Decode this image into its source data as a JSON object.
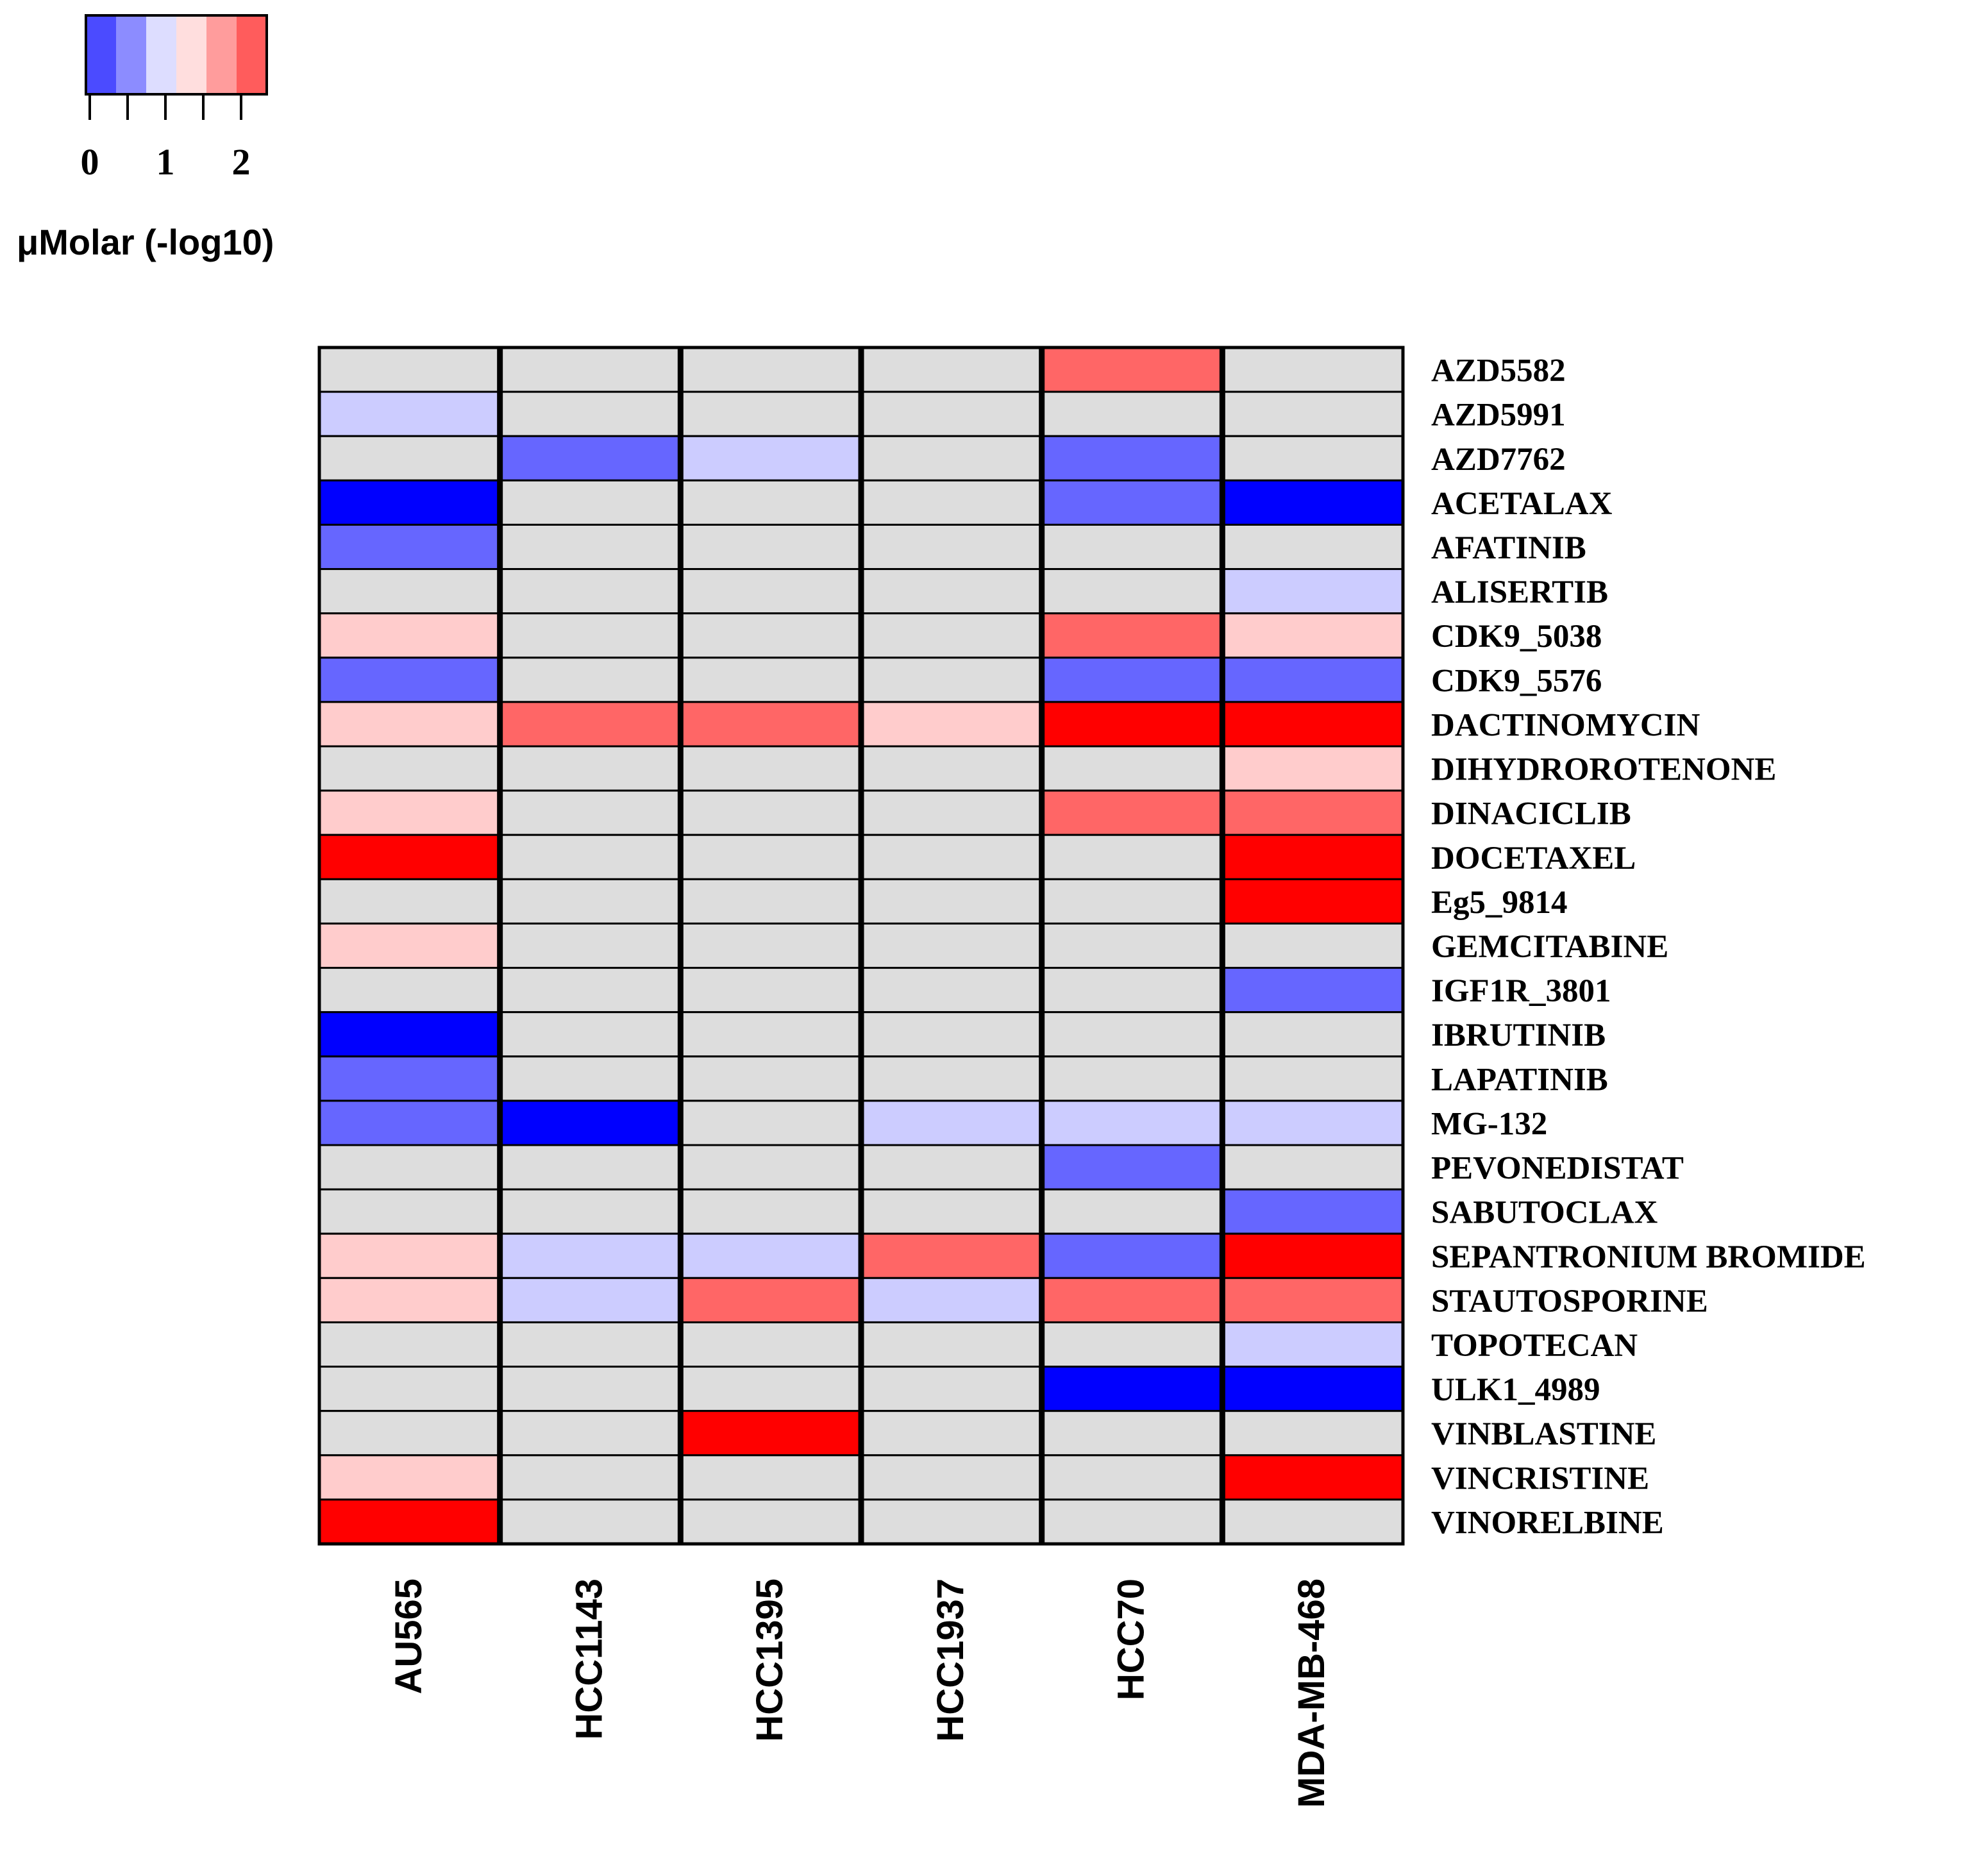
{
  "chart_data": {
    "type": "heatmap",
    "title": "",
    "legend": {
      "title": "μMolar (-log10)",
      "tick_labels": [
        "0",
        "1",
        "2"
      ],
      "bins": [
        {
          "level": -3,
          "color": "#0000ff"
        },
        {
          "level": -2,
          "color": "#6666ff"
        },
        {
          "level": -1,
          "color": "#ccccff"
        },
        {
          "level": 0,
          "color": "#dddddd"
        },
        {
          "level": 1,
          "color": "#ffcccc"
        },
        {
          "level": 2,
          "color": "#ff6666"
        },
        {
          "level": 3,
          "color": "#ff0000"
        }
      ],
      "legend_colors": [
        "#4b4bff",
        "#8c8cff",
        "#ddddff",
        "#ffdede",
        "#ff9c9c",
        "#ff5c5c"
      ]
    },
    "columns": [
      "AU565",
      "HCC1143",
      "HCC1395",
      "HCC1937",
      "HCC70",
      "MDA-MB-468"
    ],
    "rows": [
      "AZD5582",
      "AZD5991",
      "AZD7762",
      "ACETALAX",
      "AFATINIB",
      "ALISERTIB",
      "CDK9_5038",
      "CDK9_5576",
      "DACTINOMYCIN",
      "DIHYDROROTENONE",
      "DINACICLIB",
      "DOCETAXEL",
      "Eg5_9814",
      "GEMCITABINE",
      "IGF1R_3801",
      "IBRUTINIB",
      "LAPATINIB",
      "MG-132",
      "PEVONEDISTAT",
      "SABUTOCLAX",
      "SEPANTRONIUM BROMIDE",
      "STAUTOSPORINE",
      "TOPOTECAN",
      "ULK1_4989",
      "VINBLASTINE",
      "VINCRISTINE",
      "VINORELBINE"
    ],
    "values": [
      [
        0,
        0,
        0,
        0,
        2,
        0
      ],
      [
        -1,
        0,
        0,
        0,
        0,
        0
      ],
      [
        0,
        -2,
        -1,
        0,
        -2,
        0
      ],
      [
        -3,
        0,
        0,
        0,
        -2,
        -3
      ],
      [
        -2,
        0,
        0,
        0,
        0,
        0
      ],
      [
        0,
        0,
        0,
        0,
        0,
        -1
      ],
      [
        1,
        0,
        0,
        0,
        2,
        1
      ],
      [
        -2,
        0,
        0,
        0,
        -2,
        -2
      ],
      [
        1,
        2,
        2,
        1,
        3,
        3
      ],
      [
        0,
        0,
        0,
        0,
        0,
        1
      ],
      [
        1,
        0,
        0,
        0,
        2,
        2
      ],
      [
        3,
        0,
        0,
        0,
        0,
        3
      ],
      [
        0,
        0,
        0,
        0,
        0,
        3
      ],
      [
        1,
        0,
        0,
        0,
        0,
        0
      ],
      [
        0,
        0,
        0,
        0,
        0,
        -2
      ],
      [
        -3,
        0,
        0,
        0,
        0,
        0
      ],
      [
        -2,
        0,
        0,
        0,
        0,
        0
      ],
      [
        -2,
        -3,
        0,
        -1,
        -1,
        -1
      ],
      [
        0,
        0,
        0,
        0,
        -2,
        0
      ],
      [
        0,
        0,
        0,
        0,
        0,
        -2
      ],
      [
        1,
        -1,
        -1,
        2,
        -2,
        3
      ],
      [
        1,
        -1,
        2,
        -1,
        2,
        2
      ],
      [
        0,
        0,
        0,
        0,
        0,
        -1
      ],
      [
        0,
        0,
        0,
        0,
        -3,
        -3
      ],
      [
        0,
        0,
        3,
        0,
        0,
        0
      ],
      [
        1,
        0,
        0,
        0,
        0,
        3
      ],
      [
        3,
        0,
        0,
        0,
        0,
        0
      ]
    ]
  }
}
